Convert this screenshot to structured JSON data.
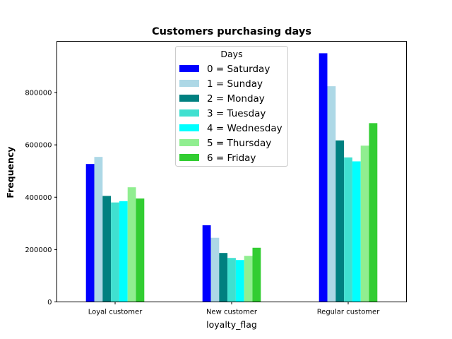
{
  "chart_data": {
    "type": "bar",
    "title": "Customers purchasing days",
    "xlabel": "loyalty_flag",
    "ylabel": "Frequency",
    "categories": [
      "Loyal customer",
      "New customer",
      "Regular customer"
    ],
    "ylim": [
      0,
      1000000
    ],
    "yticks": [
      0,
      200000,
      400000,
      600000,
      800000
    ],
    "ytick_labels": [
      "0",
      "200000",
      "400000",
      "600000",
      "800000"
    ],
    "grid": false,
    "legend": {
      "title": "Days",
      "placement": "top-center"
    },
    "series": [
      {
        "name": "0 = Saturday",
        "color": "#0000ff",
        "values": [
          527000,
          293000,
          950000
        ]
      },
      {
        "name": "1 = Sunday",
        "color": "#add8e6",
        "values": [
          554000,
          245000,
          824000
        ]
      },
      {
        "name": "2 = Monday",
        "color": "#008080",
        "values": [
          405000,
          187000,
          617000
        ]
      },
      {
        "name": "3 = Tuesday",
        "color": "#40e0d0",
        "values": [
          380000,
          168000,
          552000
        ]
      },
      {
        "name": "4 = Wednesday",
        "color": "#00ffff",
        "values": [
          385000,
          160000,
          537000
        ]
      },
      {
        "name": "5 = Thursday",
        "color": "#90ee90",
        "values": [
          438000,
          176000,
          597000
        ]
      },
      {
        "name": "6 = Friday",
        "color": "#32cd32",
        "values": [
          395000,
          207000,
          683000
        ]
      }
    ]
  }
}
